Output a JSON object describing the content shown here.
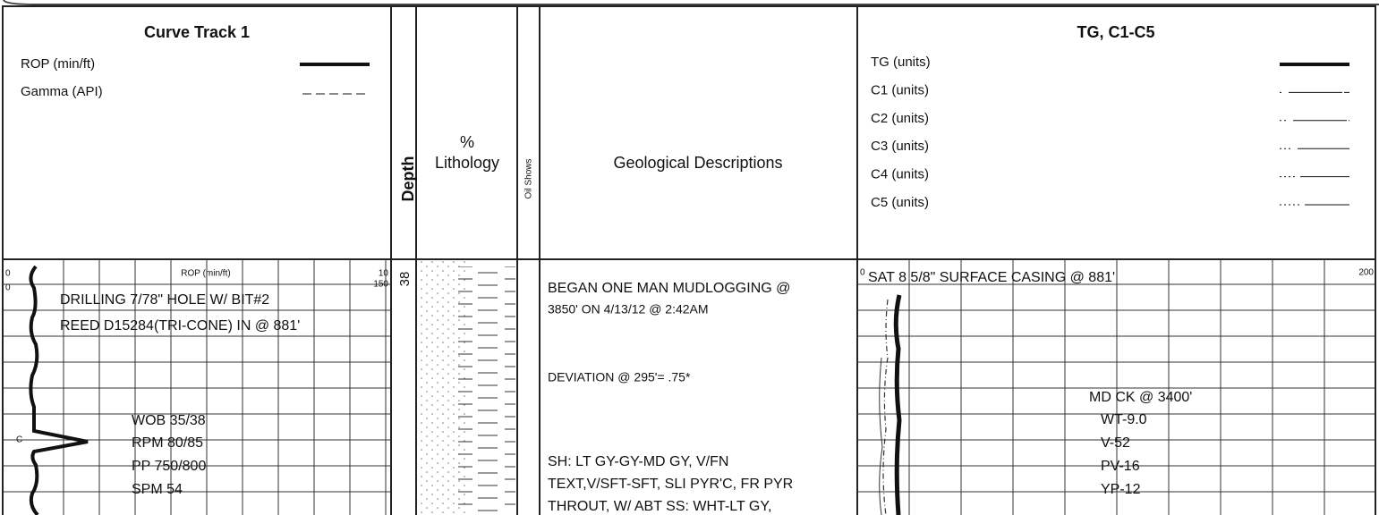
{
  "header": {
    "curve_track": {
      "title": "Curve Track 1",
      "legend": [
        "ROP (min/ft)",
        "Gamma (API)"
      ]
    },
    "depth": "Depth",
    "lithology": {
      "percent": "%",
      "title": "Lithology"
    },
    "oil_shows": "Oil Shows",
    "geological": "Geological Descriptions",
    "gas": {
      "title": "TG, C1-C5",
      "legend": [
        "TG (units)",
        "C1 (units)",
        "C2 (units)",
        "C3 (units)",
        "C4 (units)",
        "C5 (units)"
      ]
    }
  },
  "body": {
    "curve_track": {
      "scale_label": "ROP (min/ft)",
      "scale_left": [
        "0",
        "0"
      ],
      "scale_right": [
        "10",
        "150"
      ],
      "curve_marker": "C",
      "notes": [
        "DRILLING 7/78\" HOLE W/ BIT#2",
        "REED D15284(TRI-CONE) IN @ 881'",
        "WOB 35/38",
        "RPM 80/85",
        "PP 750/800",
        "SPM 54"
      ]
    },
    "depth": "38",
    "descriptions": [
      "BEGAN ONE MAN MUDLOGGING @",
      "3850' ON 4/13/12 @ 2:42AM",
      "DEVIATION @ 295'= .75*",
      "SH: LT GY-GY-MD GY, V/FN",
      "TEXT,V/SFT-SFT, SLI PYR'C, FR PYR",
      "THROUT, W/ ABT SS: WHT-LT GY,"
    ],
    "gas": {
      "scale_left": "0",
      "scale_right": "200",
      "notes": [
        "SAT 8 5/8\" SURFACE CASING @ 881'",
        "MD CK @ 3400'",
        "WT-9.0",
        "V-52",
        "PV-16",
        "YP-12"
      ]
    }
  }
}
